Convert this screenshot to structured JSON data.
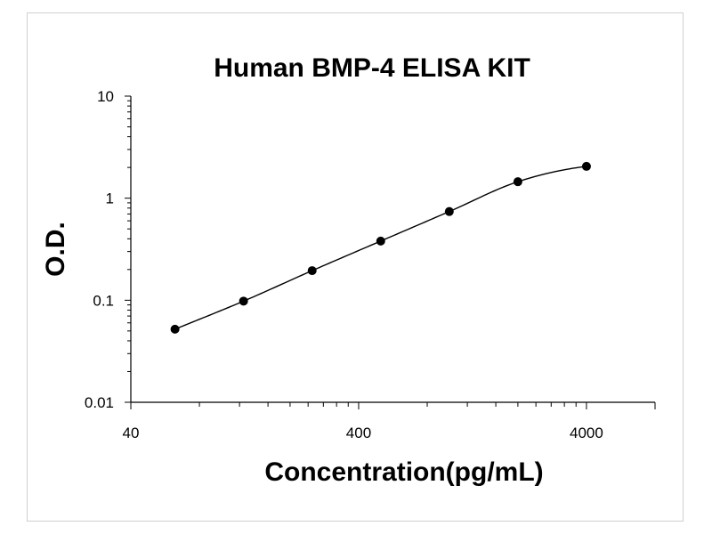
{
  "chart_data": {
    "type": "scatter",
    "title": "Human BMP-4 ELISA KIT",
    "xlabel": "Concentration(pg/mL)",
    "ylabel": "O.D.",
    "x_scale": "log",
    "y_scale": "log",
    "xlim": [
      40,
      8000
    ],
    "ylim": [
      0.01,
      10
    ],
    "x_ticks": [
      40,
      400,
      4000
    ],
    "x_tick_labels": [
      "40",
      "400",
      "4000"
    ],
    "y_ticks": [
      0.01,
      0.1,
      1,
      10
    ],
    "y_tick_labels": [
      "0.01",
      "0.1",
      "1",
      "10"
    ],
    "grid": false,
    "series": [
      {
        "x": [
          62.5,
          125,
          250,
          500,
          1000,
          2000,
          4000
        ],
        "y": [
          0.052,
          0.098,
          0.195,
          0.38,
          0.74,
          1.45,
          2.05
        ]
      }
    ],
    "colors": {
      "line": "#000000",
      "marker": "#000000",
      "axis": "#000000"
    }
  }
}
